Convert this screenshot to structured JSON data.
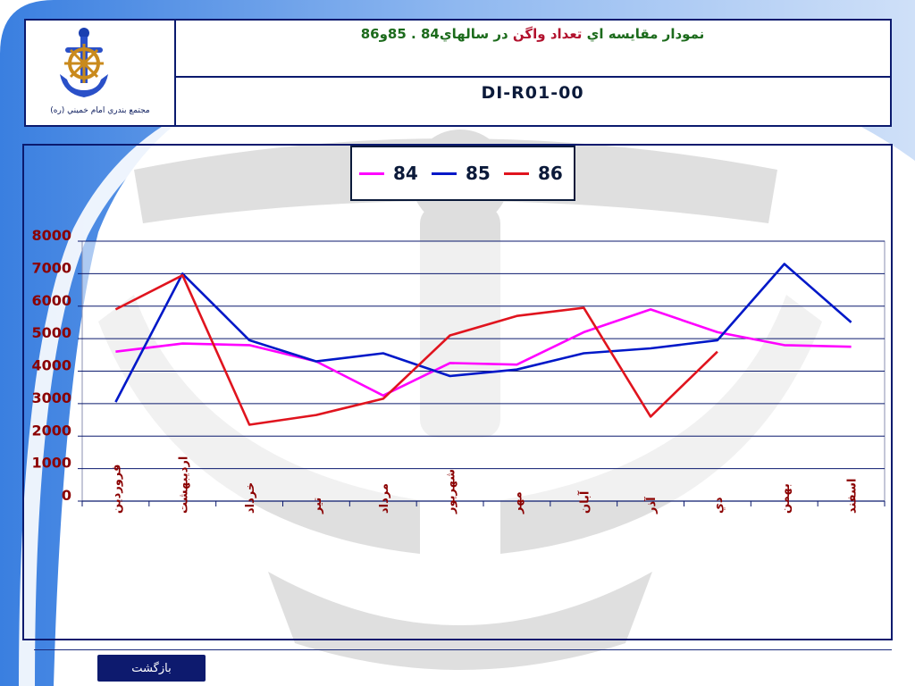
{
  "header": {
    "title_part1": "نمودار مقايسه اي ",
    "title_part2": "تعداد واگن",
    "title_part3": " در سالهاي84 . 85و86",
    "code": "DI-R01-00",
    "logo_caption": "مجتمع بندري امام خميني (ره)"
  },
  "footer": {
    "back_label": "بازگشت"
  },
  "colors": {
    "series_84": "#ff00ff",
    "series_85": "#0018c8",
    "series_86": "#e0141e",
    "frame": "#0b1a6e",
    "tick_label": "#8b0000"
  },
  "chart_data": {
    "type": "line",
    "categories": [
      "فروردين",
      "ارديبهشت",
      "خرداد",
      "تير",
      "مرداد",
      "شهريور",
      "مهر",
      "آبان",
      "آذر",
      "دي",
      "بهمن",
      "اسفند"
    ],
    "series": [
      {
        "name": "84",
        "values": [
          4600,
          4850,
          4800,
          4300,
          3250,
          4250,
          4200,
          5200,
          5900,
          5200,
          4800,
          4750
        ]
      },
      {
        "name": "85",
        "values": [
          3050,
          7000,
          4950,
          4300,
          4550,
          3850,
          4050,
          4550,
          4700,
          4950,
          7300,
          5500
        ]
      },
      {
        "name": "86",
        "values": [
          5900,
          6950,
          2350,
          2650,
          3150,
          5100,
          5700,
          5950,
          2600,
          4600,
          null,
          null
        ]
      }
    ],
    "yticks": [
      "8000",
      "7000",
      "6000",
      "5000",
      "4000",
      "3000",
      "2000",
      "1000",
      "0"
    ],
    "ylim": [
      0,
      8000
    ],
    "grid": true,
    "legend_position": "top"
  }
}
